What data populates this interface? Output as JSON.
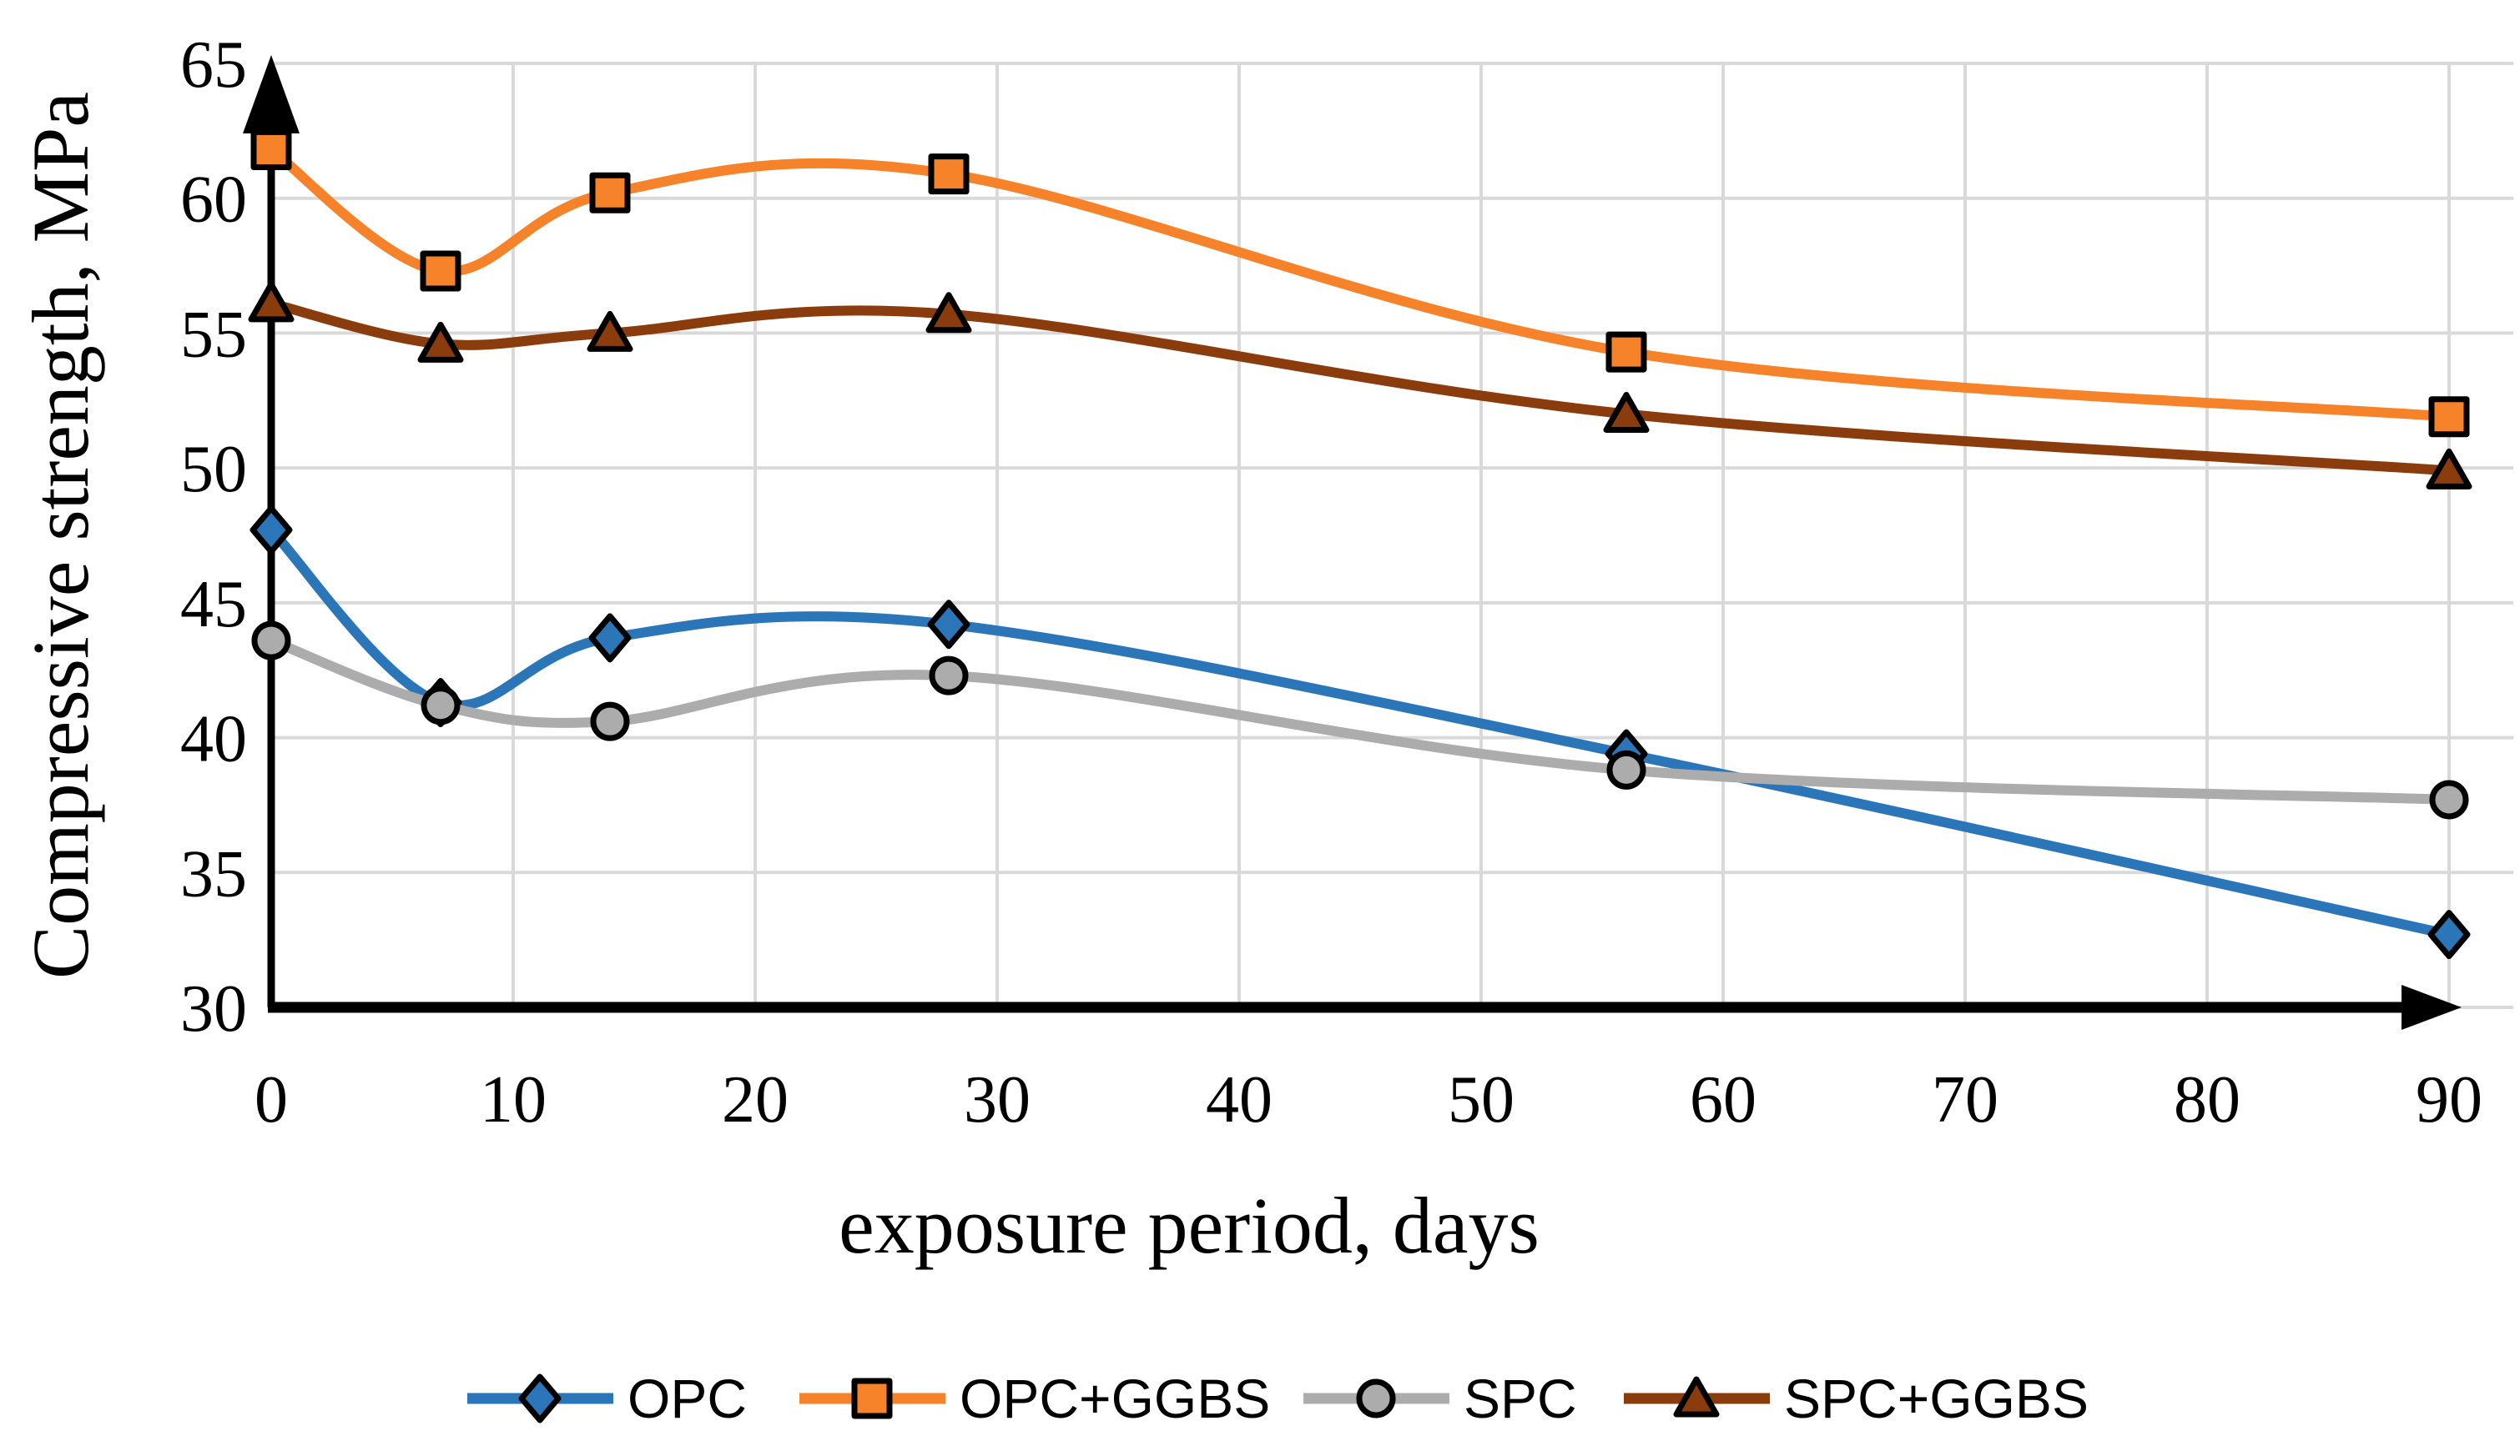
{
  "chart_data": {
    "type": "line",
    "title": "",
    "xlabel": "exposure period, days",
    "ylabel": "Compressive strength, MPa",
    "x": [
      0,
      7,
      14,
      28,
      56,
      90
    ],
    "x_ticks": [
      0,
      10,
      20,
      30,
      40,
      50,
      60,
      70,
      80,
      90
    ],
    "y_ticks": [
      30,
      35,
      40,
      45,
      50,
      55,
      60,
      65
    ],
    "xlim": [
      0,
      92.7
    ],
    "ylim": [
      30,
      65
    ],
    "grid": true,
    "legend_position": "bottom",
    "smooth_lines": true,
    "series": [
      {
        "name": "OPC",
        "marker": "diamond",
        "color": "#2B75B9",
        "values": [
          47.7,
          41.3,
          43.7,
          44.2,
          39.4,
          32.7
        ]
      },
      {
        "name": "OPC+GGBS",
        "marker": "square",
        "color": "#F6822A",
        "values": [
          61.8,
          57.3,
          60.2,
          60.9,
          54.3,
          51.9
        ]
      },
      {
        "name": "SPC",
        "marker": "circle",
        "color": "#ACACAC",
        "values": [
          43.6,
          41.2,
          40.6,
          42.3,
          38.8,
          37.7
        ]
      },
      {
        "name": "SPC+GGBS",
        "marker": "triangle",
        "color": "#8B3C0D",
        "values": [
          56.1,
          54.6,
          55.0,
          55.7,
          52.0,
          49.9
        ]
      }
    ],
    "colors": {
      "gridline": "#D9D9D9",
      "axis": "#000000",
      "marker_outline": "#000000",
      "text": "#000000",
      "background": "#FFFFFF"
    }
  }
}
